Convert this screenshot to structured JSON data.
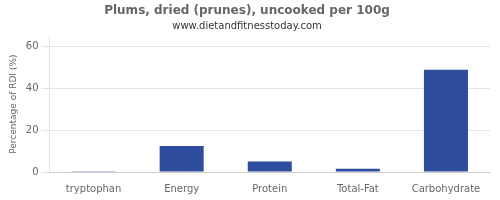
{
  "chart_data": {
    "type": "bar",
    "title": "Plums, dried (prunes), uncooked per 100g",
    "subtitle": "www.dietandfitnesstoday.com",
    "ylabel": "Percentage of RDI (%)",
    "categories": [
      "tryptophan",
      "Energy",
      "Protein",
      "Total-Fat",
      "Carbohydrate"
    ],
    "values": [
      0.1,
      12.5,
      5.0,
      1.5,
      49.0
    ],
    "color": "#2e4d9e",
    "ylim": [
      0,
      65
    ],
    "yticks": [
      0,
      20,
      40,
      60
    ],
    "grid": true
  }
}
